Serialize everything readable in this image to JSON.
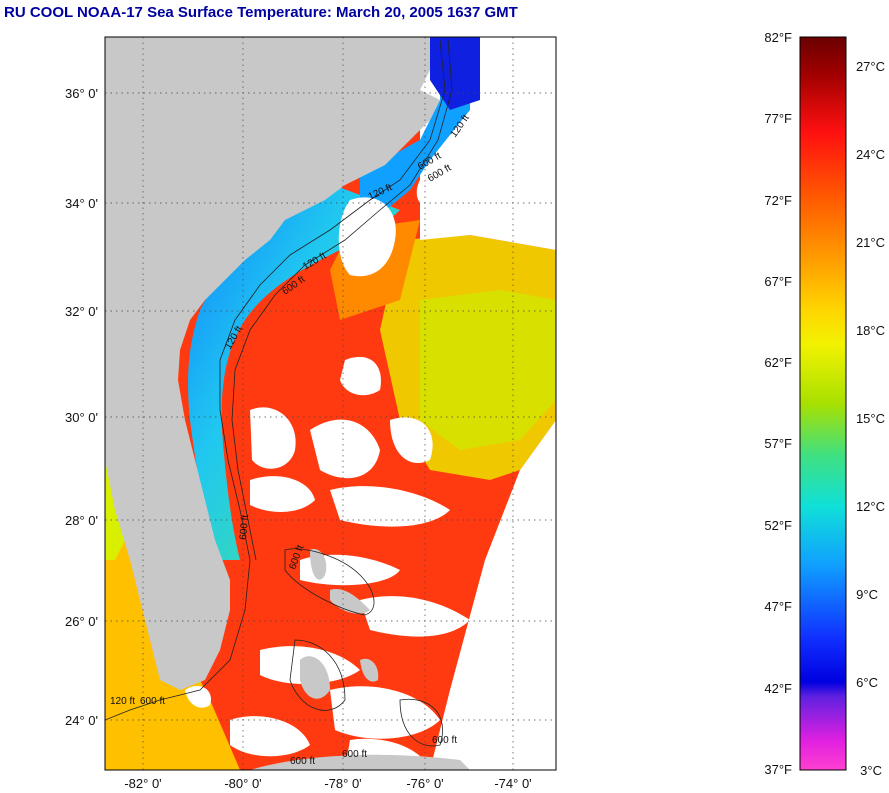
{
  "title": "RU COOL  NOAA-17  Sea Surface Temperature:  March 20, 2005 1637 GMT",
  "map": {
    "lat_labels": [
      "36° 0'",
      "34° 0'",
      "32° 0'",
      "30° 0'",
      "28° 0'",
      "26° 0'",
      "24° 0'"
    ],
    "lon_labels": [
      "-82° 0'",
      "-80° 0'",
      "-78° 0'",
      "-76° 0'",
      "-74° 0'"
    ],
    "isobath_labels": [
      "120 ft",
      "600 ft",
      "120 ft",
      "600 ft",
      "120 ft",
      "600 ft",
      "120 ft",
      "600 ft",
      "600 ft",
      "600 ft",
      "600 ft",
      "600 ft",
      "120 ft",
      "600 ft"
    ],
    "land_color": "#c8c8c8",
    "cloud_color": "#ffffff"
  },
  "colorbar": {
    "fahrenheit_labels": [
      "82°F",
      "77°F",
      "72°F",
      "67°F",
      "62°F",
      "57°F",
      "52°F",
      "47°F",
      "42°F",
      "37°F"
    ],
    "celsius_labels": [
      "27°C",
      "24°C",
      "21°C",
      "18°C",
      "15°C",
      "12°C",
      "9°C",
      "6°C",
      "3°C"
    ]
  }
}
